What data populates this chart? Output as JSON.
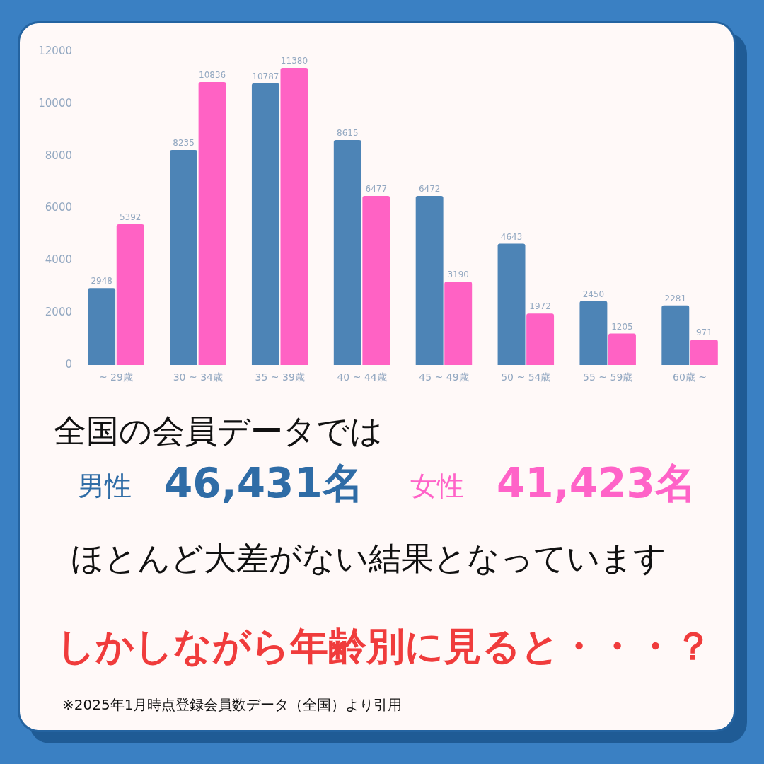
{
  "chart_data": {
    "type": "bar",
    "categories": [
      "~ 29歳",
      "30 ~ 34歳",
      "35 ~ 39歳",
      "40 ~ 44歳",
      "45 ~ 49歳",
      "50 ~ 54歳",
      "55 ~ 59歳",
      "60歳 ~"
    ],
    "series": [
      {
        "color": "#4d84b6",
        "values": [
          2948,
          8235,
          10787,
          8615,
          6472,
          4643,
          2450,
          2281
        ]
      },
      {
        "color": "#ff62c4",
        "values": [
          5392,
          10836,
          11380,
          6477,
          3190,
          1972,
          1205,
          971
        ]
      }
    ],
    "ylim": [
      0,
      12000
    ],
    "yticks": [
      0,
      2000,
      4000,
      6000,
      8000,
      10000,
      12000
    ],
    "data_labels": true,
    "grid": false,
    "legend": false,
    "annotations": [
      "全国の会員データでは",
      "男性",
      "46,431名",
      "女性",
      "41,423名",
      "ほとんど大差がない結果となっています",
      "しかしながら年齢別に見ると・・・？",
      "※2025年1月時点登録会員数データ（全国）より引用"
    ]
  }
}
